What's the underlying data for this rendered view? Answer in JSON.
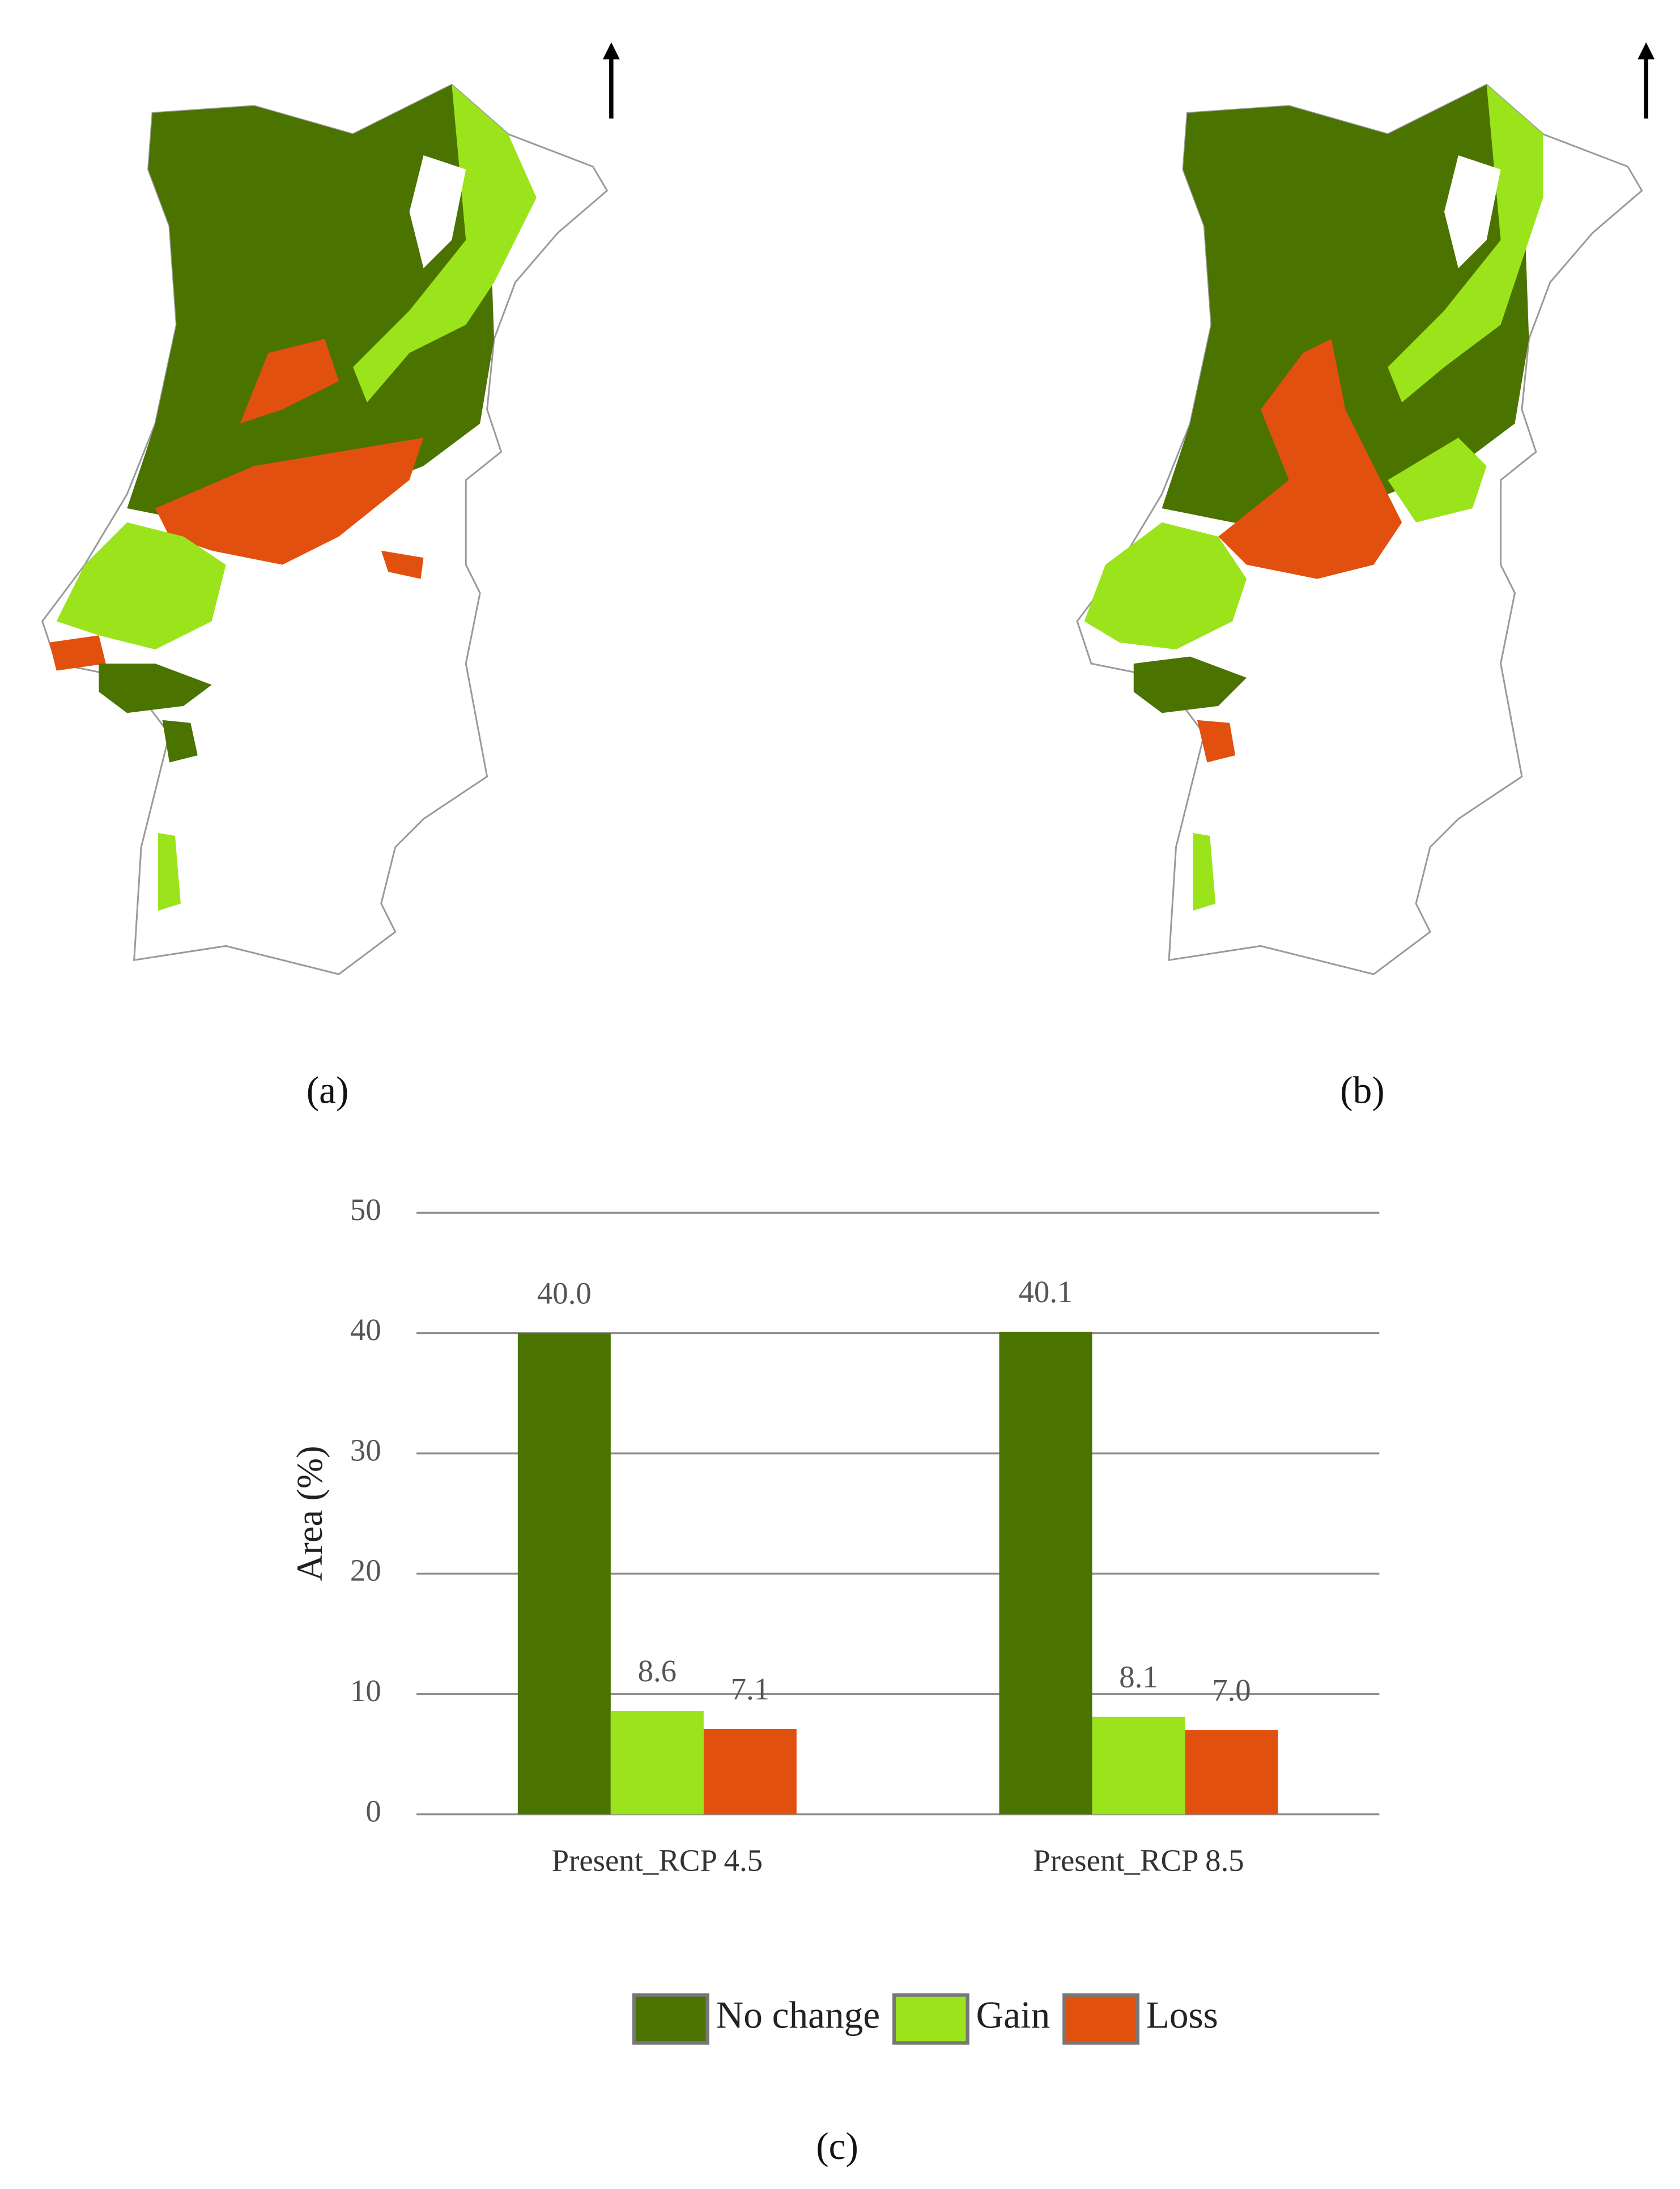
{
  "panels": {
    "a": "(a)",
    "b": "(b)",
    "c": "(c)"
  },
  "chart_data": {
    "type": "bar",
    "y_label": "Area (%)",
    "categories": [
      "Present_RCP 4.5",
      "Present_RCP 8.5"
    ],
    "series": [
      {
        "name": "No change",
        "color": "#4a7300",
        "values": [
          40.0,
          40.1
        ],
        "value_labels": [
          "40.0",
          "40.1"
        ]
      },
      {
        "name": "Gain",
        "color": "#9be31a",
        "values": [
          8.6,
          8.1
        ],
        "value_labels": [
          "8.6",
          "8.1"
        ]
      },
      {
        "name": "Loss",
        "color": "#e2500f",
        "values": [
          7.1,
          7.0
        ],
        "value_labels": [
          "7.1",
          "7.0"
        ]
      }
    ],
    "ylim": [
      0,
      50
    ],
    "yticks": [
      0,
      10,
      20,
      30,
      40,
      50
    ],
    "grid": true,
    "legend": "bottom"
  }
}
